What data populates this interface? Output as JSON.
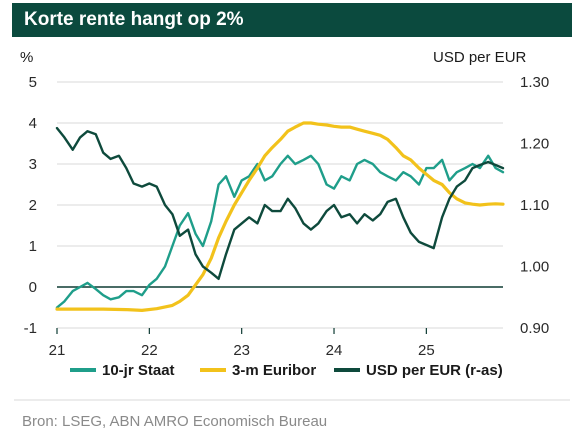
{
  "title": "Korte rente hangt op 2%",
  "source": "Bron: LSEG, ABN AMRO Economisch Bureau",
  "colors": {
    "title_bg": "#0b4a3e",
    "staat": "#1f9e8a",
    "euribor": "#f2c21b",
    "usd": "#0e4a3c",
    "zero_line": "#0e3b33",
    "grid": "#d9d9d9"
  },
  "chart_data": {
    "type": "line",
    "left_unit": "%",
    "right_unit": "USD per EUR",
    "x_ticks": [
      "21",
      "22",
      "23",
      "24",
      "25"
    ],
    "x_tick_values": [
      2021,
      2022,
      2023,
      2024,
      2025
    ],
    "xlim": [
      2021,
      2025.83
    ],
    "y_ticks": [
      "5",
      "4",
      "3",
      "2",
      "1",
      "0",
      "-1"
    ],
    "y_tick_values": [
      5,
      4,
      3,
      2,
      1,
      0,
      -1
    ],
    "ylim": [
      -1,
      5
    ],
    "y2_ticks": [
      "1.30",
      "1.20",
      "1.10",
      "1.00",
      "0.90"
    ],
    "y2_tick_values": [
      1.3,
      1.2,
      1.1,
      1.0,
      0.9
    ],
    "y2lim": [
      0.9,
      1.3
    ],
    "grid": true,
    "legend_position": "bottom",
    "series": [
      {
        "name": "10-jr Staat",
        "axis": "left",
        "x": [
          2021.0,
          2021.08,
          2021.17,
          2021.25,
          2021.33,
          2021.42,
          2021.5,
          2021.58,
          2021.67,
          2021.75,
          2021.83,
          2021.92,
          2022.0,
          2022.08,
          2022.17,
          2022.25,
          2022.33,
          2022.42,
          2022.5,
          2022.58,
          2022.67,
          2022.75,
          2022.83,
          2022.92,
          2023.0,
          2023.08,
          2023.17,
          2023.25,
          2023.33,
          2023.42,
          2023.5,
          2023.58,
          2023.67,
          2023.75,
          2023.83,
          2023.92,
          2024.0,
          2024.08,
          2024.17,
          2024.25,
          2024.33,
          2024.42,
          2024.5,
          2024.58,
          2024.67,
          2024.75,
          2024.83,
          2024.92,
          2025.0,
          2025.08,
          2025.17,
          2025.25,
          2025.33,
          2025.42,
          2025.5,
          2025.58,
          2025.67,
          2025.75,
          2025.83
        ],
        "values": [
          -0.5,
          -0.35,
          -0.1,
          0.0,
          0.1,
          -0.05,
          -0.2,
          -0.3,
          -0.25,
          -0.1,
          -0.1,
          -0.2,
          0.05,
          0.2,
          0.5,
          1.0,
          1.5,
          1.8,
          1.3,
          1.0,
          1.6,
          2.5,
          2.7,
          2.2,
          2.6,
          2.7,
          3.0,
          2.6,
          2.7,
          3.0,
          3.2,
          3.0,
          3.1,
          3.2,
          3.0,
          2.5,
          2.4,
          2.7,
          2.6,
          3.0,
          3.1,
          3.0,
          2.8,
          2.7,
          2.6,
          2.8,
          2.7,
          2.5,
          2.9,
          2.9,
          3.1,
          2.6,
          2.8,
          2.9,
          3.0,
          2.9,
          3.2,
          2.9,
          2.8
        ]
      },
      {
        "name": "3-m Euribor",
        "axis": "left",
        "x": [
          2021.0,
          2021.25,
          2021.5,
          2021.75,
          2021.92,
          2022.08,
          2022.25,
          2022.33,
          2022.42,
          2022.5,
          2022.58,
          2022.67,
          2022.75,
          2022.83,
          2022.92,
          2023.0,
          2023.08,
          2023.17,
          2023.25,
          2023.33,
          2023.42,
          2023.5,
          2023.58,
          2023.67,
          2023.75,
          2023.83,
          2023.92,
          2024.0,
          2024.08,
          2024.17,
          2024.25,
          2024.33,
          2024.42,
          2024.5,
          2024.58,
          2024.67,
          2024.75,
          2024.83,
          2024.92,
          2025.0,
          2025.08,
          2025.17,
          2025.25,
          2025.33,
          2025.42,
          2025.5,
          2025.58,
          2025.67,
          2025.75,
          2025.83
        ],
        "values": [
          -0.54,
          -0.54,
          -0.54,
          -0.55,
          -0.57,
          -0.53,
          -0.45,
          -0.35,
          -0.2,
          0.05,
          0.3,
          0.7,
          1.2,
          1.6,
          2.0,
          2.3,
          2.6,
          2.9,
          3.2,
          3.4,
          3.6,
          3.8,
          3.9,
          4.0,
          4.0,
          3.97,
          3.95,
          3.92,
          3.9,
          3.9,
          3.85,
          3.8,
          3.75,
          3.7,
          3.6,
          3.4,
          3.2,
          3.1,
          2.9,
          2.75,
          2.6,
          2.5,
          2.3,
          2.15,
          2.05,
          2.02,
          2.0,
          2.02,
          2.03,
          2.02
        ]
      },
      {
        "name": "USD per EUR (r-as)",
        "axis": "right",
        "x": [
          2021.0,
          2021.08,
          2021.17,
          2021.25,
          2021.33,
          2021.42,
          2021.5,
          2021.58,
          2021.67,
          2021.75,
          2021.83,
          2021.92,
          2022.0,
          2022.08,
          2022.17,
          2022.25,
          2022.33,
          2022.42,
          2022.5,
          2022.58,
          2022.67,
          2022.75,
          2022.83,
          2022.92,
          2023.0,
          2023.08,
          2023.17,
          2023.25,
          2023.33,
          2023.42,
          2023.5,
          2023.58,
          2023.67,
          2023.75,
          2023.83,
          2023.92,
          2024.0,
          2024.08,
          2024.17,
          2024.25,
          2024.33,
          2024.42,
          2024.5,
          2024.58,
          2024.67,
          2024.75,
          2024.83,
          2024.92,
          2025.0,
          2025.08,
          2025.17,
          2025.25,
          2025.33,
          2025.42,
          2025.5,
          2025.58,
          2025.67,
          2025.75,
          2025.83
        ],
        "values": [
          1.225,
          1.21,
          1.19,
          1.21,
          1.22,
          1.215,
          1.185,
          1.175,
          1.18,
          1.16,
          1.135,
          1.13,
          1.135,
          1.13,
          1.1,
          1.085,
          1.05,
          1.06,
          1.02,
          1.0,
          0.99,
          0.98,
          1.02,
          1.06,
          1.07,
          1.08,
          1.07,
          1.1,
          1.09,
          1.09,
          1.11,
          1.095,
          1.07,
          1.06,
          1.07,
          1.09,
          1.1,
          1.08,
          1.085,
          1.07,
          1.085,
          1.075,
          1.085,
          1.105,
          1.11,
          1.08,
          1.055,
          1.04,
          1.035,
          1.03,
          1.08,
          1.11,
          1.13,
          1.14,
          1.16,
          1.165,
          1.17,
          1.165,
          1.16
        ]
      }
    ]
  }
}
